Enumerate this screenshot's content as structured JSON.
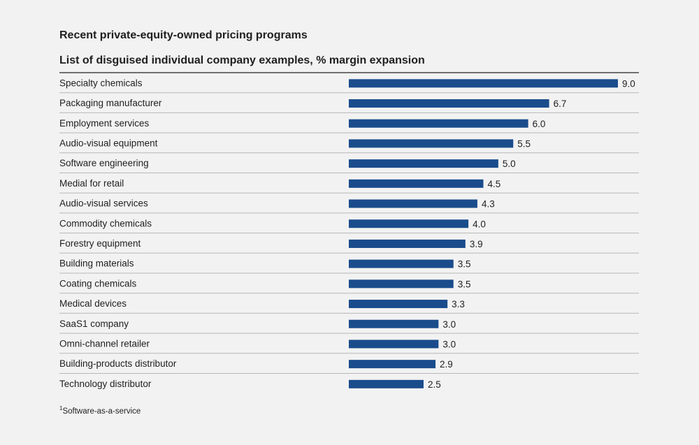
{
  "chart_data": {
    "type": "bar",
    "orientation": "horizontal",
    "title": "Recent private-equity-owned pricing programs",
    "subtitle": "List of disguised individual company examples, % margin expansion",
    "categories": [
      "Specialty chemicals",
      "Packaging manufacturer",
      "Employment services",
      "Audio-visual equipment",
      "Software engineering",
      "Medial for retail",
      "Audio-visual services",
      "Commodity chemicals",
      "Forestry equipment",
      "Building materials",
      "Coating chemicals",
      "Medical devices",
      "SaaS1 company",
      "Omni-channel retailer",
      "Building-products distributor",
      "Technology distributor"
    ],
    "values": [
      9.0,
      6.7,
      6.0,
      5.5,
      5.0,
      4.5,
      4.3,
      4.0,
      3.9,
      3.5,
      3.5,
      3.3,
      3.0,
      3.0,
      2.9,
      2.5
    ],
    "value_labels": [
      "9.0",
      "6.7",
      "6.0",
      "5.5",
      "5.0",
      "4.5",
      "4.3",
      "4.0",
      "3.9",
      "3.5",
      "3.5",
      "3.3",
      "3.0",
      "3.0",
      "2.9",
      "2.5"
    ],
    "xlim": [
      0,
      9.0
    ],
    "bar_color": "#1a4c8c",
    "grid": false
  },
  "footnote": {
    "marker": "1",
    "text": "Software-as-a-service"
  }
}
